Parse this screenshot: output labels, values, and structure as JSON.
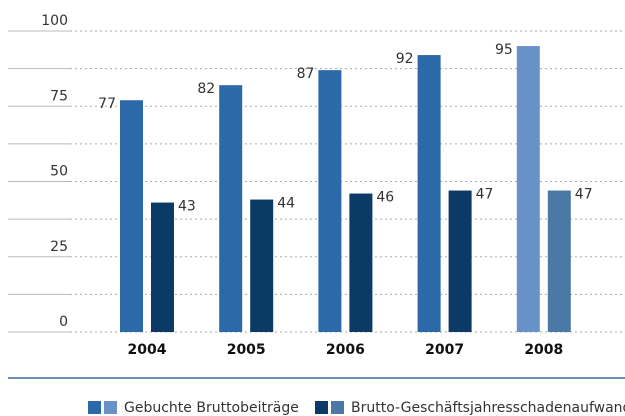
{
  "chart_data": {
    "type": "bar",
    "categories": [
      "2004",
      "2005",
      "2006",
      "2007",
      "2008"
    ],
    "series": [
      {
        "name": "Gebuchte Bruttobeiträge",
        "color": "#2b69a9",
        "colors": [
          "#2b69a9",
          "#2b69a9",
          "#2b69a9",
          "#2b69a9",
          "#6791c7"
        ],
        "values": [
          77,
          82,
          87,
          92,
          95
        ]
      },
      {
        "name": "Brutto-Geschäftsjahresschadenaufwand",
        "color": "#0b3a66",
        "colors": [
          "#0b3a66",
          "#0b3a66",
          "#0b3a66",
          "#0b3a66",
          "#4a79a6"
        ],
        "values": [
          43,
          44,
          46,
          47,
          47
        ]
      }
    ],
    "ylim": [
      0,
      100
    ],
    "yticks": [
      0,
      25,
      50,
      75,
      100
    ],
    "minor_yticks": [
      12.5,
      37.5,
      62.5,
      87.5
    ],
    "grid": true,
    "legend": "bottom"
  }
}
